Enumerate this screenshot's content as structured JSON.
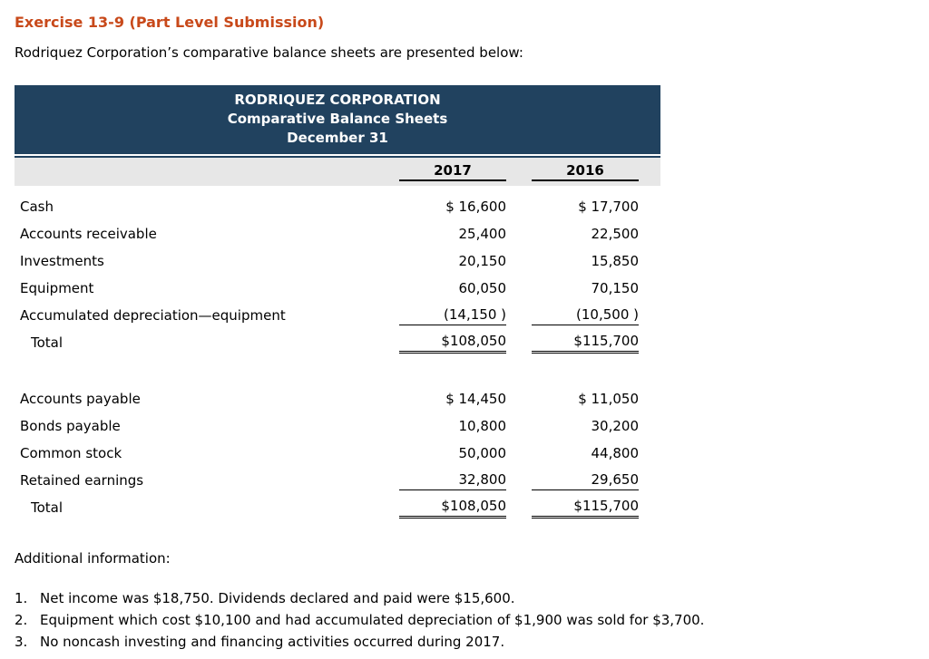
{
  "exercise": {
    "title": "Exercise 13-9 (Part Level Submission)",
    "intro": "Rodriquez Corporation’s comparative balance sheets are presented below:",
    "additional_info_label": "Additional information:",
    "notes": [
      {
        "num": "1.",
        "text": "Net income was $18,750. Dividends declared and paid were $15,600."
      },
      {
        "num": "2.",
        "text": "Equipment which cost $10,100 and had accumulated depreciation of $1,900 was sold for $3,700."
      },
      {
        "num": "3.",
        "text": "No noncash investing and financing activities occurred during 2017."
      }
    ]
  },
  "balance_sheet": {
    "company": "RODRIQUEZ CORPORATION",
    "statement": "Comparative Balance Sheets",
    "date_line": "December 31",
    "columns": {
      "col1": "2017",
      "col2": "2016"
    },
    "assets": [
      {
        "label": "Cash",
        "y2017": "$ 16,600",
        "y2016": "$ 17,700"
      },
      {
        "label": "Accounts receivable",
        "y2017": "25,400",
        "y2016": "22,500"
      },
      {
        "label": "Investments",
        "y2017": "20,150",
        "y2016": "15,850"
      },
      {
        "label": "Equipment",
        "y2017": "60,050",
        "y2016": "70,150"
      },
      {
        "label": "Accumulated depreciation—equipment",
        "y2017": "(14,150 )",
        "y2016": "(10,500 )"
      },
      {
        "label": "Total",
        "y2017": "$108,050",
        "y2016": "$115,700"
      }
    ],
    "liabilities_equity": [
      {
        "label": "Accounts payable",
        "y2017": "$ 14,450",
        "y2016": "$ 11,050"
      },
      {
        "label": "Bonds payable",
        "y2017": "10,800",
        "y2016": "30,200"
      },
      {
        "label": "Common stock",
        "y2017": "50,000",
        "y2016": "44,800"
      },
      {
        "label": "Retained earnings",
        "y2017": "32,800",
        "y2016": "29,650"
      },
      {
        "label": "Total",
        "y2017": "$108,050",
        "y2016": "$115,700"
      }
    ],
    "colors": {
      "title_orange": "#c8491a",
      "header_navy": "#21425f",
      "column_band_gray": "#e7e7e7"
    }
  }
}
